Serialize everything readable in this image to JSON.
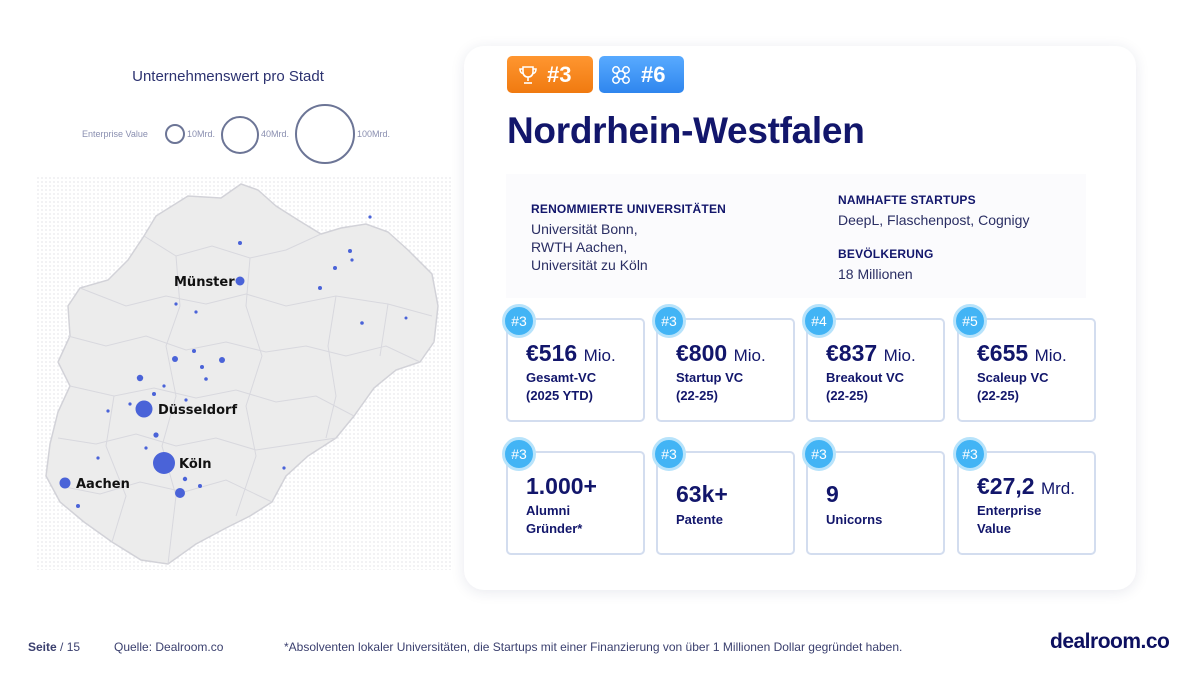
{
  "legend": {
    "title": "Unternehmenswert pro Stadt",
    "label": "Enterprise Value",
    "sizes": [
      "10Mrd.",
      "40Mrd.",
      "100Mrd."
    ]
  },
  "map": {
    "cities": [
      {
        "name": "Münster"
      },
      {
        "name": "Düsseldorf"
      },
      {
        "name": "Köln"
      },
      {
        "name": "Aachen"
      }
    ]
  },
  "colors": {
    "accent_orange": "#f58a1f",
    "accent_blue": "#3d93f2",
    "rank_blue": "#42b4f5",
    "title_navy": "#12166b",
    "map_dot": "#4a63d8"
  },
  "card": {
    "badges": [
      {
        "icon": "trophy-icon",
        "label": "#3"
      },
      {
        "icon": "network-icon",
        "label": "#6"
      }
    ],
    "title": "Nordrhein-Westfalen",
    "info": {
      "universities_heading": "RENOMMIERTE UNIVERSITÄTEN",
      "universities": [
        "Universität Bonn,",
        "RWTH Aachen,",
        "Universität zu Köln"
      ],
      "startups_heading": "NAMHAFTE STARTUPS",
      "startups": "DeepL, Flaschenpost, Cognigy",
      "population_heading": "BEVÖLKERUNG",
      "population": "18 Millionen"
    },
    "kpis": [
      {
        "rank": "#3",
        "value": "€516",
        "unit": "Mio.",
        "label1": "Gesamt-VC",
        "label2": "(2025 YTD)"
      },
      {
        "rank": "#3",
        "value": "€800",
        "unit": "Mio.",
        "label1": "Startup VC",
        "label2": "(22-25)"
      },
      {
        "rank": "#4",
        "value": "€837",
        "unit": "Mio.",
        "label1": "Breakout VC",
        "label2": "(22-25)"
      },
      {
        "rank": "#5",
        "value": "€655",
        "unit": "Mio.",
        "label1": "Scaleup VC",
        "label2": "(22-25)"
      },
      {
        "rank": "#3",
        "value": "1.000+",
        "unit": "",
        "label1": "Alumni",
        "label2": "Gründer*"
      },
      {
        "rank": "#3",
        "value": "63k+",
        "unit": "",
        "label1": "Patente",
        "label2": ""
      },
      {
        "rank": "#3",
        "value": "9",
        "unit": "",
        "label1": "Unicorns",
        "label2": ""
      },
      {
        "rank": "#3",
        "value": "€27,2",
        "unit": "Mrd.",
        "label1": "Enterprise",
        "label2": "Value"
      }
    ]
  },
  "footer": {
    "page_label": "Seite",
    "page_total": "/ 15",
    "source": "Quelle: Dealroom.co",
    "footnote": "*Absolventen lokaler Universitäten, die Startups mit einer Finanzierung von über 1 Millionen Dollar gegründet haben.",
    "brand": "dealroom.co"
  }
}
